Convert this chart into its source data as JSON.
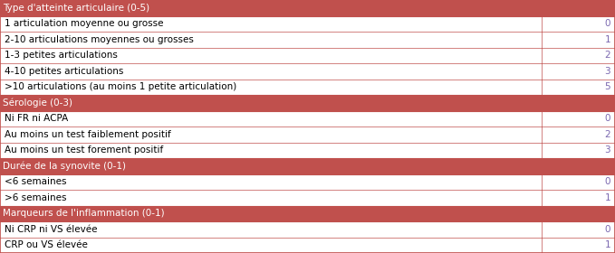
{
  "rows": [
    {
      "label": "Type d'atteinte articulaire (0-5)",
      "score": "",
      "is_header": true
    },
    {
      "label": "1 articulation moyenne ou grosse",
      "score": "0",
      "is_header": false
    },
    {
      "label": "2-10 articulations moyennes ou grosses",
      "score": "1",
      "is_header": false
    },
    {
      "label": "1-3 petites articulations",
      "score": "2",
      "is_header": false
    },
    {
      "label": "4-10 petites articulations",
      "score": "3",
      "is_header": false
    },
    {
      "label": ">10 articulations (au moins 1 petite articulation)",
      "score": "5",
      "is_header": false
    },
    {
      "label": "Sérologie (0-3)",
      "score": "",
      "is_header": true
    },
    {
      "label": "Ni FR ni ACPA",
      "score": "0",
      "is_header": false
    },
    {
      "label": "Au moins un test faiblement positif",
      "score": "2",
      "is_header": false
    },
    {
      "label": "Au moins un test forement positif",
      "score": "3",
      "is_header": false
    },
    {
      "label": "Durée de la synovite (0-1)",
      "score": "",
      "is_header": true
    },
    {
      "label": "<6 semaines",
      "score": "0",
      "is_header": false
    },
    {
      "label": ">6 semaines",
      "score": "1",
      "is_header": false
    },
    {
      "label": "Marqueurs de l'inflammation (0-1)",
      "score": "",
      "is_header": true
    },
    {
      "label": "Ni CRP ni VS élevée",
      "score": "0",
      "is_header": false
    },
    {
      "label": "CRP ou VS élevée",
      "score": "1",
      "is_header": false
    }
  ],
  "header_bg_color": "#C0504D",
  "header_text_color": "#FFFFFF",
  "border_color": "#C0504D",
  "text_color": "#000000",
  "score_text_color": "#7B68B0",
  "font_size": 7.5,
  "header_font_size": 7.5,
  "col_split": 0.88,
  "fig_width": 6.79,
  "fig_height": 2.8,
  "dpi": 100
}
